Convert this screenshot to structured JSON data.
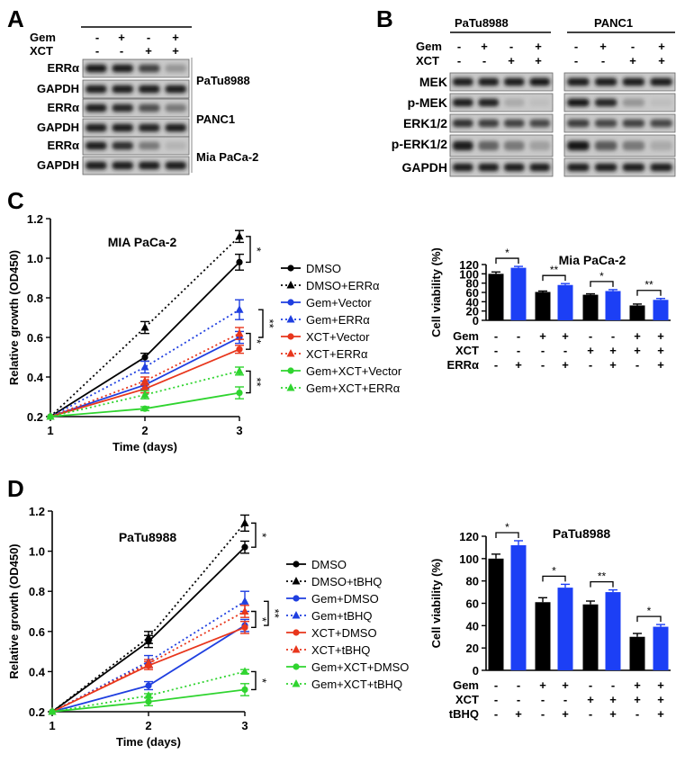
{
  "panel_letters": {
    "a": "A",
    "b": "B",
    "c": "C",
    "d": "D"
  },
  "blot_a": {
    "treat_labels": [
      "Gem",
      "XCT"
    ],
    "signs": [
      [
        "-",
        "+",
        "-",
        "+"
      ],
      [
        "-",
        "-",
        "+",
        "+"
      ]
    ],
    "rows": [
      "ERRα",
      "GAPDH",
      "ERRα",
      "GAPDH",
      "ERRα",
      "GAPDH"
    ],
    "cell_lines": [
      "PaTu8988",
      "PANC1",
      "Mia PaCa-2"
    ]
  },
  "blot_b": {
    "cell_lines": [
      "PaTu8988",
      "PANC1"
    ],
    "treat_labels": [
      "Gem",
      "XCT"
    ],
    "signs": [
      [
        "-",
        "+",
        "-",
        "+"
      ],
      [
        "-",
        "-",
        "+",
        "+"
      ]
    ],
    "rows": [
      "MEK",
      "p-MEK",
      "ERK1/2",
      "p-ERK1/2",
      "GAPDH"
    ]
  },
  "chart_data": [
    {
      "type": "line",
      "panel": "C",
      "title": "MIA PaCa-2",
      "xlabel": "Time (days)",
      "ylabel": "Relative growth (OD450)",
      "xlim": [
        1,
        3
      ],
      "ylim": [
        0.2,
        1.2
      ],
      "x": [
        1,
        2,
        3
      ],
      "xticks": [
        "1",
        "2",
        "3"
      ],
      "yticks": [
        "0.2",
        "0.4",
        "0.6",
        "0.8",
        "1.0",
        "1.2"
      ],
      "series": [
        {
          "name": "DMSO",
          "values": [
            0.2,
            0.5,
            0.98
          ],
          "err": [
            0,
            0.02,
            0.04
          ],
          "color": "#000000",
          "dash": false,
          "marker": "circle"
        },
        {
          "name": "DMSO+ERRα",
          "values": [
            0.2,
            0.65,
            1.11
          ],
          "err": [
            0,
            0.03,
            0.03
          ],
          "color": "#000000",
          "dash": true,
          "marker": "triangle"
        },
        {
          "name": "Gem+Vector",
          "values": [
            0.2,
            0.36,
            0.6
          ],
          "err": [
            0,
            0.02,
            0.03
          ],
          "color": "#1f3fe0",
          "dash": false,
          "marker": "circle"
        },
        {
          "name": "Gem+ERRα",
          "values": [
            0.2,
            0.45,
            0.74
          ],
          "err": [
            0,
            0.03,
            0.05
          ],
          "color": "#1f3fe0",
          "dash": true,
          "marker": "triangle"
        },
        {
          "name": "XCT+Vector",
          "values": [
            0.2,
            0.34,
            0.54
          ],
          "err": [
            0,
            0.02,
            0.02
          ],
          "color": "#e8361c",
          "dash": false,
          "marker": "circle"
        },
        {
          "name": "XCT+ERRα",
          "values": [
            0.2,
            0.38,
            0.62
          ],
          "err": [
            0,
            0.02,
            0.03
          ],
          "color": "#e8361c",
          "dash": true,
          "marker": "triangle"
        },
        {
          "name": "Gem+XCT+Vector",
          "values": [
            0.2,
            0.24,
            0.32
          ],
          "err": [
            0,
            0.01,
            0.03
          ],
          "color": "#2fd42f",
          "dash": false,
          "marker": "circle"
        },
        {
          "name": "Gem+XCT+ERRα",
          "values": [
            0.2,
            0.31,
            0.43
          ],
          "err": [
            0,
            0.02,
            0.02
          ],
          "color": "#2fd42f",
          "dash": true,
          "marker": "triangle"
        }
      ],
      "significance": [
        {
          "from": 0.98,
          "to": 1.11,
          "label": "*"
        },
        {
          "from": 0.6,
          "to": 0.74,
          "label": "**"
        },
        {
          "from": 0.54,
          "to": 0.62,
          "label": "*"
        },
        {
          "from": 0.32,
          "to": 0.43,
          "label": "**"
        }
      ]
    },
    {
      "type": "bar",
      "panel": "C",
      "title": "Mia PaCa-2",
      "ylabel": "Cell viability (%)",
      "ylim": [
        0,
        120
      ],
      "yticks": [
        "0",
        "20",
        "40",
        "60",
        "80",
        "100",
        "120"
      ],
      "values": [
        100,
        113,
        61,
        76,
        55,
        63,
        32,
        44
      ],
      "err": [
        4,
        3,
        2,
        3,
        2,
        3,
        3,
        3
      ],
      "colors": [
        "#000000",
        "#1c3ff5",
        "#000000",
        "#1c3ff5",
        "#000000",
        "#1c3ff5",
        "#000000",
        "#1c3ff5"
      ],
      "row_labels": [
        "Gem",
        "XCT",
        "ERRα"
      ],
      "signs": [
        [
          "-",
          "-",
          "+",
          "+",
          "-",
          "-",
          "+",
          "+"
        ],
        [
          "-",
          "-",
          "-",
          "-",
          "+",
          "+",
          "+",
          "+"
        ],
        [
          "-",
          "+",
          "-",
          "+",
          "-",
          "+",
          "-",
          "+"
        ]
      ],
      "significance": [
        {
          "pair": [
            0,
            1
          ],
          "label": "*"
        },
        {
          "pair": [
            2,
            3
          ],
          "label": "**"
        },
        {
          "pair": [
            4,
            5
          ],
          "label": "*"
        },
        {
          "pair": [
            6,
            7
          ],
          "label": "**"
        }
      ]
    },
    {
      "type": "line",
      "panel": "D",
      "title": "PaTu8988",
      "xlabel": "Time (days)",
      "ylabel": "Relative growth (OD450)",
      "xlim": [
        1,
        3
      ],
      "ylim": [
        0.2,
        1.2
      ],
      "x": [
        1,
        2,
        3
      ],
      "xticks": [
        "1",
        "2",
        "3"
      ],
      "yticks": [
        "0.2",
        "0.4",
        "0.6",
        "0.8",
        "1.0",
        "1.2"
      ],
      "series": [
        {
          "name": "DMSO",
          "values": [
            0.2,
            0.55,
            1.02
          ],
          "err": [
            0,
            0.03,
            0.03
          ],
          "color": "#000000",
          "dash": false,
          "marker": "circle"
        },
        {
          "name": "DMSO+tBHQ",
          "values": [
            0.2,
            0.57,
            1.14
          ],
          "err": [
            0,
            0.03,
            0.04
          ],
          "color": "#000000",
          "dash": true,
          "marker": "triangle"
        },
        {
          "name": "Gem+DMSO",
          "values": [
            0.2,
            0.33,
            0.63
          ],
          "err": [
            0,
            0.02,
            0.03
          ],
          "color": "#1f3fe0",
          "dash": false,
          "marker": "circle"
        },
        {
          "name": "Gem+tBHQ",
          "values": [
            0.2,
            0.45,
            0.75
          ],
          "err": [
            0,
            0.03,
            0.05
          ],
          "color": "#1f3fe0",
          "dash": true,
          "marker": "triangle"
        },
        {
          "name": "XCT+DMSO",
          "values": [
            0.2,
            0.43,
            0.62
          ],
          "err": [
            0,
            0.02,
            0.03
          ],
          "color": "#e8361c",
          "dash": false,
          "marker": "circle"
        },
        {
          "name": "XCT+tBHQ",
          "values": [
            0.2,
            0.44,
            0.7
          ],
          "err": [
            0,
            0.02,
            0.03
          ],
          "color": "#e8361c",
          "dash": true,
          "marker": "triangle"
        },
        {
          "name": "Gem+XCT+DMSO",
          "values": [
            0.2,
            0.25,
            0.31
          ],
          "err": [
            0,
            0.02,
            0.03
          ],
          "color": "#2fd42f",
          "dash": false,
          "marker": "circle"
        },
        {
          "name": "Gem+XCT+tBHQ",
          "values": [
            0.2,
            0.28,
            0.4
          ],
          "err": [
            0,
            0.01,
            0.01
          ],
          "color": "#2fd42f",
          "dash": true,
          "marker": "triangle"
        }
      ],
      "significance": [
        {
          "from": 1.02,
          "to": 1.14,
          "label": "*"
        },
        {
          "from": 0.63,
          "to": 0.75,
          "label": "**"
        },
        {
          "from": 0.62,
          "to": 0.7,
          "label": "*"
        },
        {
          "from": 0.31,
          "to": 0.4,
          "label": "*"
        }
      ]
    },
    {
      "type": "bar",
      "panel": "D",
      "title": "PaTu8988",
      "ylabel": "Cell viability (%)",
      "ylim": [
        0,
        120
      ],
      "yticks": [
        "0",
        "20",
        "40",
        "60",
        "80",
        "100",
        "120"
      ],
      "values": [
        100,
        112,
        61,
        74,
        59,
        70,
        30,
        39
      ],
      "err": [
        4,
        4,
        4,
        3,
        3,
        2,
        3,
        2
      ],
      "colors": [
        "#000000",
        "#1c3ff5",
        "#000000",
        "#1c3ff5",
        "#000000",
        "#1c3ff5",
        "#000000",
        "#1c3ff5"
      ],
      "row_labels": [
        "Gem",
        "XCT",
        "tBHQ"
      ],
      "signs": [
        [
          "-",
          "-",
          "+",
          "+",
          "-",
          "-",
          "+",
          "+"
        ],
        [
          "-",
          "-",
          "-",
          "-",
          "+",
          "+",
          "+",
          "+"
        ],
        [
          "-",
          "+",
          "-",
          "+",
          "-",
          "+",
          "-",
          "+"
        ]
      ],
      "significance": [
        {
          "pair": [
            0,
            1
          ],
          "label": "*"
        },
        {
          "pair": [
            2,
            3
          ],
          "label": "*"
        },
        {
          "pair": [
            4,
            5
          ],
          "label": "**"
        },
        {
          "pair": [
            6,
            7
          ],
          "label": "*"
        }
      ]
    }
  ]
}
